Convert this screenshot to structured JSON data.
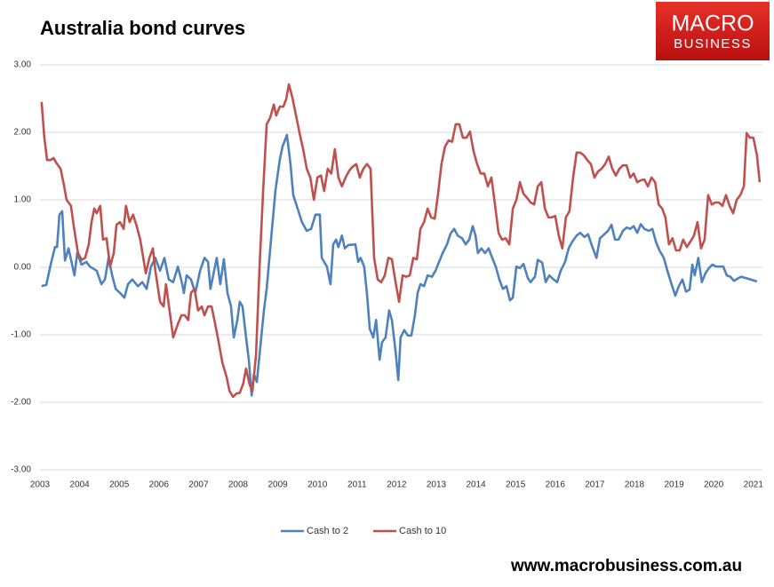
{
  "chart_data": {
    "type": "line",
    "title": "Australia bond curves",
    "xlim": [
      2003,
      2021.2
    ],
    "xticks": [
      2003,
      2004,
      2005,
      2006,
      2007,
      2008,
      2009,
      2010,
      2011,
      2012,
      2013,
      2014,
      2015,
      2016,
      2017,
      2018,
      2019,
      2020,
      2021
    ],
    "ylim": [
      -3,
      3
    ],
    "yticks": [
      {
        "value": 3,
        "label": "3.00"
      },
      {
        "value": 2,
        "label": "2.00"
      },
      {
        "value": 1,
        "label": "1.00"
      },
      {
        "value": 0,
        "label": "0.00"
      },
      {
        "value": -1,
        "label": "-1.00"
      },
      {
        "value": -2,
        "label": "-2.00"
      },
      {
        "value": -3,
        "label": "-3.00"
      }
    ],
    "grid": true,
    "legend": "bottom",
    "series": [
      {
        "name": "Cash to 2",
        "color": "#4f81bd",
        "x": [
          2003.04,
          2003.16,
          2003.27,
          2003.38,
          2003.43,
          2003.49,
          2003.56,
          2003.63,
          2003.72,
          2003.87,
          2003.94,
          2004.05,
          2004.17,
          2004.26,
          2004.43,
          2004.55,
          2004.64,
          2004.73,
          2004.82,
          2004.91,
          2005.02,
          2005.13,
          2005.22,
          2005.33,
          2005.47,
          2005.58,
          2005.69,
          2005.8,
          2005.91,
          2006.03,
          2006.14,
          2006.25,
          2006.36,
          2006.48,
          2006.59,
          2006.63,
          2006.7,
          2006.81,
          2006.92,
          2007.04,
          2007.15,
          2007.24,
          2007.3,
          2007.37,
          2007.46,
          2007.55,
          2007.64,
          2007.73,
          2007.82,
          2007.89,
          2007.98,
          2008.04,
          2008.11,
          2008.2,
          2008.27,
          2008.34,
          2008.4,
          2008.47,
          2008.56,
          2008.65,
          2008.72,
          2008.83,
          2008.94,
          2009.05,
          2009.12,
          2009.23,
          2009.32,
          2009.39,
          2009.5,
          2009.61,
          2009.73,
          2009.84,
          2009.95,
          2010.06,
          2010.11,
          2010.24,
          2010.33,
          2010.4,
          2010.47,
          2010.53,
          2010.62,
          2010.69,
          2010.78,
          2010.96,
          2011.03,
          2011.09,
          2011.18,
          2011.25,
          2011.32,
          2011.41,
          2011.48,
          2011.57,
          2011.63,
          2011.72,
          2011.81,
          2011.88,
          2011.97,
          2012.04,
          2012.1,
          2012.19,
          2012.28,
          2012.37,
          2012.46,
          2012.53,
          2012.6,
          2012.69,
          2012.78,
          2012.89,
          2012.98,
          2013.07,
          2013.16,
          2013.27,
          2013.36,
          2013.45,
          2013.54,
          2013.65,
          2013.74,
          2013.83,
          2013.92,
          2013.99,
          2014.05,
          2014.14,
          2014.23,
          2014.32,
          2014.41,
          2014.5,
          2014.59,
          2014.68,
          2014.77,
          2014.86,
          2014.93,
          2015.02,
          2015.11,
          2015.2,
          2015.31,
          2015.38,
          2015.49,
          2015.56,
          2015.67,
          2015.76,
          2015.85,
          2015.96,
          2016.05,
          2016.14,
          2016.25,
          2016.34,
          2016.43,
          2016.54,
          2016.63,
          2016.74,
          2016.83,
          2016.92,
          2017.04,
          2017.13,
          2017.24,
          2017.33,
          2017.42,
          2017.51,
          2017.6,
          2017.71,
          2017.8,
          2017.89,
          2017.98,
          2018.07,
          2018.16,
          2018.25,
          2018.36,
          2018.45,
          2018.54,
          2018.63,
          2018.74,
          2018.83,
          2018.92,
          2019.03,
          2019.12,
          2019.21,
          2019.3,
          2019.39,
          2019.46,
          2019.52,
          2019.61,
          2019.7,
          2019.79,
          2019.88,
          2019.97,
          2020.06,
          2020.24,
          2020.33,
          2020.42,
          2020.51,
          2020.6,
          2020.69,
          2020.87,
          2021.09
        ],
        "values": [
          -0.28,
          -0.26,
          0.04,
          0.3,
          0.3,
          0.78,
          0.83,
          0.1,
          0.28,
          -0.12,
          0.21,
          0.04,
          0.08,
          0.01,
          -0.05,
          -0.25,
          -0.18,
          0.14,
          -0.12,
          -0.32,
          -0.38,
          -0.45,
          -0.25,
          -0.18,
          -0.28,
          -0.22,
          -0.32,
          0.01,
          0.14,
          -0.05,
          0.14,
          -0.18,
          -0.22,
          0.01,
          -0.25,
          -0.38,
          -0.12,
          -0.18,
          -0.38,
          -0.05,
          0.14,
          0.08,
          -0.32,
          -0.12,
          0.14,
          -0.25,
          0.12,
          -0.38,
          -0.58,
          -1.04,
          -0.78,
          -0.51,
          -0.58,
          -1.04,
          -1.37,
          -1.9,
          -1.58,
          -1.7,
          -1.17,
          -0.64,
          -0.32,
          0.41,
          1.13,
          1.59,
          1.79,
          1.96,
          1.53,
          1.07,
          0.87,
          0.67,
          0.54,
          0.57,
          0.78,
          0.78,
          0.14,
          0.01,
          -0.25,
          0.34,
          0.41,
          0.3,
          0.47,
          0.28,
          0.33,
          0.34,
          0.08,
          0.14,
          0.01,
          -0.38,
          -0.91,
          -1.04,
          -0.78,
          -1.37,
          -1.11,
          -1.04,
          -0.64,
          -0.78,
          -1.24,
          -1.67,
          -1.04,
          -0.93,
          -1.01,
          -1.01,
          -0.71,
          -0.38,
          -0.25,
          -0.28,
          -0.12,
          -0.14,
          -0.05,
          0.08,
          0.21,
          0.34,
          0.5,
          0.57,
          0.47,
          0.43,
          0.34,
          0.41,
          0.61,
          0.47,
          0.21,
          0.28,
          0.21,
          0.28,
          0.14,
          0.01,
          -0.18,
          -0.32,
          -0.28,
          -0.49,
          -0.45,
          0.01,
          -0.01,
          0.05,
          -0.16,
          -0.22,
          -0.14,
          0.11,
          0.07,
          -0.22,
          -0.12,
          -0.18,
          -0.22,
          -0.05,
          0.08,
          0.28,
          0.38,
          0.47,
          0.51,
          0.45,
          0.49,
          0.33,
          0.14,
          0.43,
          0.49,
          0.54,
          0.63,
          0.41,
          0.41,
          0.54,
          0.59,
          0.57,
          0.61,
          0.51,
          0.64,
          0.57,
          0.54,
          0.57,
          0.38,
          0.25,
          0.14,
          -0.05,
          -0.22,
          -0.42,
          -0.28,
          -0.18,
          -0.36,
          -0.33,
          0.04,
          -0.12,
          0.14,
          -0.22,
          -0.09,
          -0.01,
          0.04,
          0.01,
          0.01,
          -0.12,
          -0.14,
          -0.2,
          -0.17,
          -0.14,
          -0.17,
          -0.21
        ]
      },
      {
        "name": "Cash to 10",
        "color": "#c0504d",
        "x": [
          2003.04,
          2003.11,
          2003.18,
          2003.27,
          2003.34,
          2003.43,
          2003.52,
          2003.61,
          2003.67,
          2003.78,
          2003.87,
          2003.96,
          2004.05,
          2004.14,
          2004.23,
          2004.3,
          2004.37,
          2004.43,
          2004.52,
          2004.59,
          2004.68,
          2004.77,
          2004.86,
          2004.93,
          2005.02,
          2005.11,
          2005.17,
          2005.26,
          2005.35,
          2005.44,
          2005.53,
          2005.67,
          2005.76,
          2005.85,
          2005.91,
          2006.03,
          2006.12,
          2006.18,
          2006.27,
          2006.36,
          2006.48,
          2006.57,
          2006.65,
          2006.74,
          2006.81,
          2006.9,
          2006.99,
          2007.08,
          2007.15,
          2007.24,
          2007.33,
          2007.42,
          2007.51,
          2007.6,
          2007.71,
          2007.78,
          2007.87,
          2007.96,
          2008.04,
          2008.13,
          2008.2,
          2008.29,
          2008.36,
          2008.45,
          2008.54,
          2008.63,
          2008.72,
          2008.81,
          2008.9,
          2008.96,
          2009.05,
          2009.14,
          2009.21,
          2009.28,
          2009.37,
          2009.46,
          2009.55,
          2009.64,
          2009.73,
          2009.82,
          2009.91,
          2010.0,
          2010.09,
          2010.17,
          2010.26,
          2010.35,
          2010.44,
          2010.53,
          2010.62,
          2010.71,
          2010.8,
          2010.89,
          2010.98,
          2011.07,
          2011.16,
          2011.25,
          2011.34,
          2011.43,
          2011.52,
          2011.61,
          2011.7,
          2011.79,
          2011.88,
          2011.97,
          2012.06,
          2012.15,
          2012.24,
          2012.33,
          2012.42,
          2012.51,
          2012.6,
          2012.69,
          2012.78,
          2012.87,
          2012.96,
          2013.04,
          2013.13,
          2013.22,
          2013.31,
          2013.4,
          2013.49,
          2013.58,
          2013.67,
          2013.76,
          2013.85,
          2013.94,
          2014.03,
          2014.12,
          2014.21,
          2014.3,
          2014.39,
          2014.48,
          2014.57,
          2014.66,
          2014.75,
          2014.84,
          2014.93,
          2015.02,
          2015.11,
          2015.2,
          2015.29,
          2015.38,
          2015.47,
          2015.56,
          2015.65,
          2015.74,
          2015.83,
          2015.91,
          2016.0,
          2016.09,
          2016.18,
          2016.27,
          2016.36,
          2016.45,
          2016.54,
          2016.63,
          2016.72,
          2016.81,
          2016.9,
          2016.99,
          2017.08,
          2017.17,
          2017.26,
          2017.35,
          2017.44,
          2017.53,
          2017.62,
          2017.71,
          2017.8,
          2017.89,
          2017.98,
          2018.07,
          2018.16,
          2018.25,
          2018.34,
          2018.43,
          2018.52,
          2018.61,
          2018.7,
          2018.78,
          2018.87,
          2018.96,
          2019.05,
          2019.14,
          2019.23,
          2019.32,
          2019.41,
          2019.5,
          2019.59,
          2019.68,
          2019.77,
          2019.86,
          2019.95,
          2020.04,
          2020.13,
          2020.22,
          2020.31,
          2020.4,
          2020.49,
          2020.58,
          2020.67,
          2020.76,
          2020.83,
          2020.91,
          2021.0,
          2021.09,
          2021.16
        ],
        "values": [
          2.45,
          1.92,
          1.59,
          1.59,
          1.62,
          1.53,
          1.46,
          1.2,
          1.0,
          0.91,
          0.54,
          0.21,
          0.11,
          0.14,
          0.34,
          0.67,
          0.87,
          0.8,
          0.91,
          0.41,
          0.43,
          0.01,
          0.21,
          0.63,
          0.67,
          0.57,
          0.91,
          0.67,
          0.78,
          0.61,
          0.41,
          -0.09,
          0.14,
          0.28,
          -0.05,
          -0.51,
          -0.58,
          -0.25,
          -0.64,
          -1.04,
          -0.84,
          -0.71,
          -0.71,
          -0.78,
          -0.38,
          -0.32,
          -0.64,
          -0.58,
          -0.71,
          -0.58,
          -0.58,
          -0.84,
          -1.11,
          -1.41,
          -1.63,
          -1.83,
          -1.92,
          -1.87,
          -1.86,
          -1.72,
          -1.5,
          -1.74,
          -1.83,
          -1.3,
          0.01,
          1.13,
          2.12,
          2.22,
          2.41,
          2.25,
          2.38,
          2.38,
          2.49,
          2.71,
          2.51,
          2.25,
          1.99,
          1.75,
          1.46,
          1.33,
          1.0,
          1.33,
          1.36,
          1.13,
          1.46,
          1.39,
          1.75,
          1.33,
          1.2,
          1.33,
          1.43,
          1.49,
          1.53,
          1.33,
          1.46,
          1.53,
          1.46,
          0.14,
          -0.18,
          -0.22,
          -0.12,
          0.14,
          0.12,
          -0.22,
          -0.51,
          -0.12,
          -0.14,
          -0.12,
          0.14,
          0.12,
          0.57,
          0.67,
          0.87,
          0.74,
          0.72,
          1.07,
          1.53,
          1.79,
          1.88,
          1.86,
          2.12,
          2.12,
          1.92,
          1.92,
          2.01,
          1.72,
          1.53,
          1.39,
          1.39,
          1.2,
          1.33,
          0.93,
          0.51,
          0.41,
          0.43,
          0.34,
          0.87,
          1.0,
          1.26,
          1.09,
          1.03,
          0.96,
          0.93,
          1.2,
          1.26,
          0.87,
          0.74,
          0.74,
          0.76,
          0.47,
          0.28,
          0.74,
          0.83,
          1.33,
          1.7,
          1.7,
          1.66,
          1.59,
          1.53,
          1.33,
          1.42,
          1.46,
          1.53,
          1.64,
          1.46,
          1.36,
          1.46,
          1.51,
          1.51,
          1.33,
          1.39,
          1.26,
          1.29,
          1.3,
          1.2,
          1.33,
          1.26,
          0.93,
          0.87,
          0.74,
          0.34,
          0.43,
          0.25,
          0.25,
          0.41,
          0.3,
          0.38,
          0.47,
          0.67,
          0.28,
          0.41,
          1.07,
          0.93,
          0.96,
          0.96,
          0.91,
          1.07,
          0.91,
          0.8,
          1.0,
          1.07,
          1.2,
          1.99,
          1.92,
          1.92,
          1.66,
          1.26
        ]
      }
    ]
  },
  "logo": {
    "line1": "MACRO",
    "line2": "BUSINESS"
  },
  "footer": {
    "website": "www.macrobusiness.com.au"
  }
}
